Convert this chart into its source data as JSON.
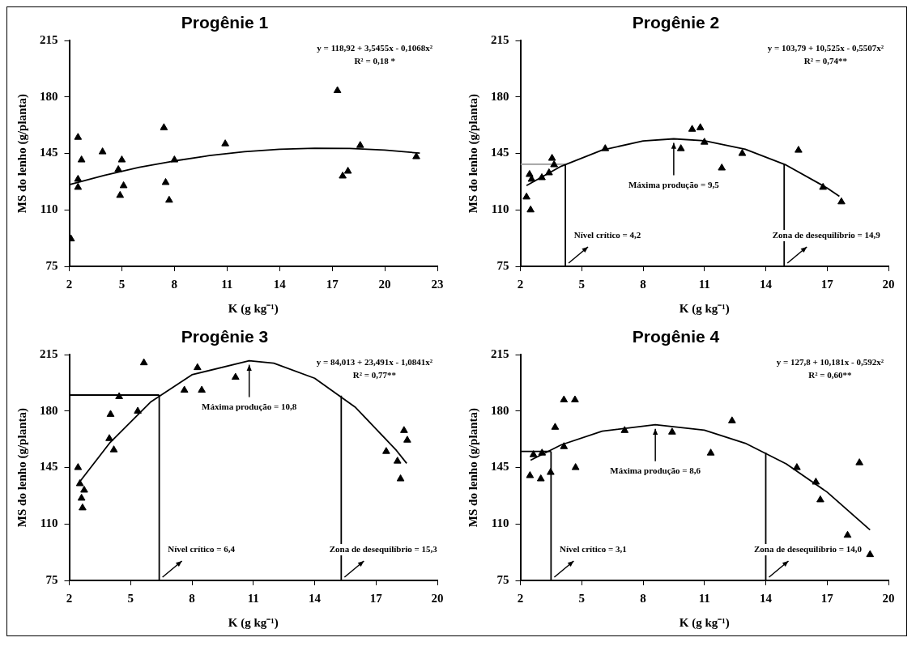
{
  "chart_data": [
    {
      "type": "scatter",
      "title": "Progênie 1",
      "xlabel": "K (g kg⁻¹)",
      "ylabel": "MS do lenho (g/planta)",
      "xlim": [
        2,
        23
      ],
      "xticks": [
        2,
        5,
        8,
        11,
        14,
        17,
        20,
        23
      ],
      "ylim": [
        75,
        215
      ],
      "yticks": [
        75,
        110,
        145,
        180,
        215
      ],
      "grid": false,
      "annotations": [
        "y = 118,92 + 3,5455x - 0,1068x²",
        "R² = 0,18 *"
      ],
      "series": [
        {
          "type": "scatter",
          "marker": "triangle",
          "color": "#000000",
          "x": [
            2.1,
            2.5,
            2.7,
            2.5,
            2.5,
            3.9,
            4.8,
            5.0,
            5.1,
            4.9,
            7.4,
            7.5,
            7.7,
            8.0,
            10.9,
            17.3,
            17.9,
            17.6,
            18.6,
            21.8
          ],
          "values": [
            92,
            155,
            141,
            129,
            124,
            146,
            135,
            141,
            125,
            119,
            161,
            127,
            116,
            141,
            151,
            184,
            134,
            131,
            150,
            143
          ]
        },
        {
          "type": "line",
          "color": "#000000",
          "x": [
            2,
            4,
            6,
            8,
            10,
            12,
            14,
            16,
            18,
            20,
            22
          ],
          "values": [
            125.6,
            131.4,
            136.4,
            140.4,
            143.7,
            146.1,
            147.6,
            148.3,
            148.1,
            147.1,
            145.2
          ]
        }
      ]
    },
    {
      "type": "scatter",
      "title": "Progênie 2",
      "xlabel": "K (g kg⁻¹)",
      "ylabel": "MS do lenho (g/planta)",
      "xlim": [
        2,
        20
      ],
      "xticks": [
        2,
        5,
        8,
        11,
        14,
        17,
        20
      ],
      "ylim": [
        75,
        215
      ],
      "yticks": [
        75,
        110,
        145,
        180,
        215
      ],
      "grid": false,
      "annotations": [
        "y = 103,79 + 10,525x - 0,5507x²",
        "R² = 0,74**",
        {
          "text": "Máxima produção = 9,5",
          "x": 9.5,
          "y": 154.1
        },
        {
          "text": "Nível crítico = 4,2",
          "x": 4.2,
          "y": 75
        },
        {
          "text": "Zona de desequilíbrio = 14,9",
          "x": 14.9,
          "y": 75
        }
      ],
      "series": [
        {
          "type": "scatter",
          "marker": "triangle",
          "color": "#000000",
          "x": [
            2.3,
            2.5,
            2.45,
            2.55,
            3.05,
            3.4,
            3.55,
            3.65,
            6.15,
            9.85,
            10.4,
            10.8,
            11.0,
            11.85,
            12.85,
            15.6,
            16.8,
            17.7
          ],
          "values": [
            118,
            110,
            132,
            129,
            130,
            133,
            142,
            138,
            148,
            148,
            160,
            161,
            152,
            136,
            145,
            147,
            124,
            115
          ]
        },
        {
          "type": "line",
          "color": "#000000",
          "x": [
            2.3,
            4,
            6,
            8,
            9.5,
            11,
            13,
            15,
            17,
            17.6
          ],
          "values": [
            125.1,
            137.1,
            147.1,
            152.8,
            154.1,
            152.9,
            147.6,
            137.8,
            123.6,
            118.4
          ]
        },
        {
          "type": "line",
          "color": "#000000",
          "x": [
            4.2,
            4.2
          ],
          "values": [
            75,
            138.3
          ]
        },
        {
          "type": "line",
          "color": "#999999",
          "x": [
            2,
            4.2
          ],
          "values": [
            138.3,
            138.3
          ]
        },
        {
          "type": "line",
          "color": "#000000",
          "x": [
            14.9,
            14.9
          ],
          "values": [
            75,
            138.7
          ]
        }
      ]
    },
    {
      "type": "scatter",
      "title": "Progênie 3",
      "xlabel": "K (g kg⁻¹)",
      "ylabel": "MS do lenho (g/planta)",
      "xlim": [
        2,
        20
      ],
      "xticks": [
        2,
        5,
        8,
        11,
        14,
        17,
        20
      ],
      "ylim": [
        75,
        215
      ],
      "yticks": [
        75,
        110,
        145,
        180,
        215
      ],
      "grid": false,
      "annotations": [
        "y = 84,013 + 23,491x - 1,0841x²",
        "R² = 0,77**",
        {
          "text": "Máxima produção = 10,8",
          "x": 10.8,
          "y": 211.3
        },
        {
          "text": "Nível crítico = 6,4",
          "x": 6.4,
          "y": 75
        },
        {
          "text": "Zona de desequilíbrio = 15,3",
          "x": 15.3,
          "y": 75
        }
      ],
      "series": [
        {
          "type": "scatter",
          "marker": "triangle",
          "color": "#000000",
          "x": [
            2.43,
            2.52,
            2.73,
            2.6,
            2.65,
            4.02,
            3.96,
            4.18,
            4.44,
            5.35,
            5.65,
            7.63,
            8.27,
            8.48,
            10.13,
            17.5,
            18.05,
            18.2,
            18.37,
            18.53
          ],
          "values": [
            145,
            135,
            131,
            126,
            120,
            178,
            163,
            156,
            189,
            180,
            210,
            193,
            207,
            193,
            201,
            155,
            149,
            138,
            168,
            162
          ]
        },
        {
          "type": "line",
          "color": "#000000",
          "x": [
            2.5,
            4,
            6,
            8,
            10.8,
            12,
            14,
            16,
            18,
            18.5
          ],
          "values": [
            136.0,
            160.6,
            185.9,
            202.6,
            211.3,
            209.8,
            200.4,
            182.3,
            155.6,
            147.6
          ]
        },
        {
          "type": "line",
          "color": "#000000",
          "x": [
            2,
            6.4
          ],
          "values": [
            190,
            190
          ]
        },
        {
          "type": "line",
          "color": "#000000",
          "x": [
            6.4,
            6.4
          ],
          "values": [
            75,
            190
          ]
        },
        {
          "type": "line",
          "color": "#000000",
          "x": [
            15.3,
            15.3
          ],
          "values": [
            75,
            189.6
          ]
        }
      ]
    },
    {
      "type": "scatter",
      "title": "Progênie 4",
      "xlabel": "K (g kg⁻¹)",
      "ylabel": "MS do lenho (g/planta)",
      "xlim": [
        2,
        20
      ],
      "xticks": [
        2,
        5,
        8,
        11,
        14,
        17,
        20
      ],
      "ylim": [
        75,
        215
      ],
      "yticks": [
        75,
        110,
        145,
        180,
        215
      ],
      "grid": false,
      "annotations": [
        "y = 127,8 + 10,181x - 0,592x²",
        "R² = 0,60**",
        {
          "text": "Máxima produção = 8,6",
          "x": 8.6,
          "y": 171.6
        },
        {
          "text": "Nível crítico = 3,1",
          "x": 3.5,
          "y": 75
        },
        {
          "text": "Zona de desequilíbrio = 14,0",
          "x": 14.0,
          "y": 75
        }
      ],
      "series": [
        {
          "type": "scatter",
          "marker": "triangle",
          "color": "#000000",
          "x": [
            2.47,
            2.64,
            3.0,
            3.06,
            3.48,
            3.7,
            4.13,
            4.13,
            4.67,
            4.7,
            7.1,
            9.42,
            11.31,
            12.35,
            15.52,
            16.45,
            16.67,
            18.0,
            18.58,
            19.1
          ],
          "values": [
            140,
            153,
            138,
            154,
            142,
            170,
            158,
            187,
            187,
            145,
            168,
            167,
            154,
            174,
            145,
            136,
            125,
            103,
            148,
            91
          ]
        },
        {
          "type": "line",
          "color": "#000000",
          "x": [
            2.5,
            4,
            6,
            8.6,
            11,
            13,
            15,
            17,
            19.1
          ],
          "values": [
            149.6,
            159.1,
            167.6,
            171.6,
            168.2,
            160.1,
            147.3,
            129.8,
            106.3
          ]
        },
        {
          "type": "line",
          "color": "#000000",
          "x": [
            2,
            3.5
          ],
          "values": [
            155,
            155
          ]
        },
        {
          "type": "line",
          "color": "#000000",
          "x": [
            3.5,
            3.5
          ],
          "values": [
            75,
            155
          ]
        },
        {
          "type": "line",
          "color": "#000000",
          "x": [
            14.0,
            14.0
          ],
          "values": [
            75,
            154.3
          ]
        }
      ]
    }
  ]
}
